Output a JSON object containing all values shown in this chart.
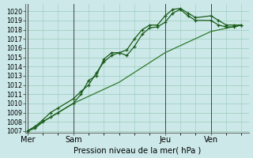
{
  "bg_color": "#cce8e8",
  "grid_color": "#99ccbb",
  "line_color_dark": "#1a5c1a",
  "line_color_med": "#2d7a2d",
  "xlabel_text": "Pression niveau de la mer( hPa )",
  "yticks": [
    1007,
    1008,
    1009,
    1010,
    1011,
    1012,
    1013,
    1014,
    1015,
    1016,
    1017,
    1018,
    1019,
    1020
  ],
  "ylim": [
    1006.8,
    1020.8
  ],
  "xtick_labels": [
    "Mer",
    "Sam",
    "Jeu",
    "Ven"
  ],
  "xtick_positions": [
    0,
    24,
    72,
    96
  ],
  "xlim": [
    -1,
    116
  ],
  "vline_positions": [
    0,
    24,
    72,
    96
  ],
  "series1_x": [
    0,
    4,
    8,
    12,
    16,
    24,
    28,
    32,
    36,
    40,
    44,
    48,
    52,
    56,
    60,
    64,
    68,
    72,
    76,
    80,
    84,
    88,
    96,
    100,
    104,
    108,
    112
  ],
  "series1_y": [
    1007.0,
    1007.3,
    1008.0,
    1008.5,
    1009.0,
    1010.0,
    1011.0,
    1012.5,
    1013.0,
    1014.8,
    1015.5,
    1015.5,
    1015.2,
    1016.2,
    1017.5,
    1018.2,
    1018.3,
    1018.8,
    1019.8,
    1020.2,
    1019.5,
    1019.0,
    1019.0,
    1018.5,
    1018.3,
    1018.3,
    1018.5
  ],
  "series2_x": [
    0,
    4,
    8,
    12,
    16,
    24,
    28,
    32,
    36,
    40,
    44,
    48,
    52,
    56,
    60,
    64,
    68,
    72,
    76,
    80,
    84,
    88,
    96,
    100,
    104,
    108,
    112
  ],
  "series2_y": [
    1007.0,
    1007.5,
    1008.2,
    1009.0,
    1009.5,
    1010.5,
    1011.3,
    1012.0,
    1013.3,
    1014.5,
    1015.2,
    1015.5,
    1015.8,
    1017.0,
    1018.0,
    1018.5,
    1018.5,
    1019.5,
    1020.2,
    1020.3,
    1019.8,
    1019.3,
    1019.5,
    1019.0,
    1018.5,
    1018.5,
    1018.5
  ],
  "series3_x": [
    0,
    24,
    48,
    72,
    96,
    112
  ],
  "series3_y": [
    1007.0,
    1010.0,
    1012.3,
    1015.5,
    1017.8,
    1018.5
  ],
  "spine_color": "#666666",
  "vline_color": "#444444"
}
